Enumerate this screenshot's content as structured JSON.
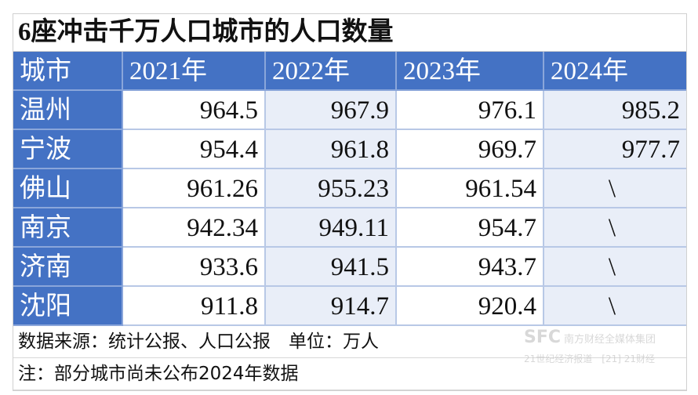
{
  "title": "6座冲击千万人口城市的人口数量",
  "headers": [
    "城市",
    "2021年",
    "2022年",
    "2023年",
    "2024年"
  ],
  "rows": [
    {
      "city": "温州",
      "values": [
        "964.5",
        "967.9",
        "976.1",
        "985.2"
      ]
    },
    {
      "city": "宁波",
      "values": [
        "954.4",
        "961.8",
        "969.7",
        "977.7"
      ]
    },
    {
      "city": "佛山",
      "values": [
        "961.26",
        "955.23",
        "961.54",
        "\\"
      ]
    },
    {
      "city": "南京",
      "values": [
        "942.34",
        "949.11",
        "954.7",
        "\\"
      ]
    },
    {
      "city": "济南",
      "values": [
        "933.6",
        "941.5",
        "943.7",
        "\\"
      ]
    },
    {
      "city": "沈阳",
      "values": [
        "911.8",
        "914.7",
        "920.4",
        "\\"
      ]
    }
  ],
  "footer": {
    "source": "数据来源：统计公报、人口公报　单位：万人",
    "note": "注：部分城市尚未公布2024年数据"
  },
  "watermark": {
    "logo": "SFC",
    "group": "南方财经全媒体集团",
    "paper": "21世纪经济报道",
    "app": "21财经"
  },
  "colors": {
    "header": "#4472c4",
    "alt_cell": "#e9eef8"
  }
}
